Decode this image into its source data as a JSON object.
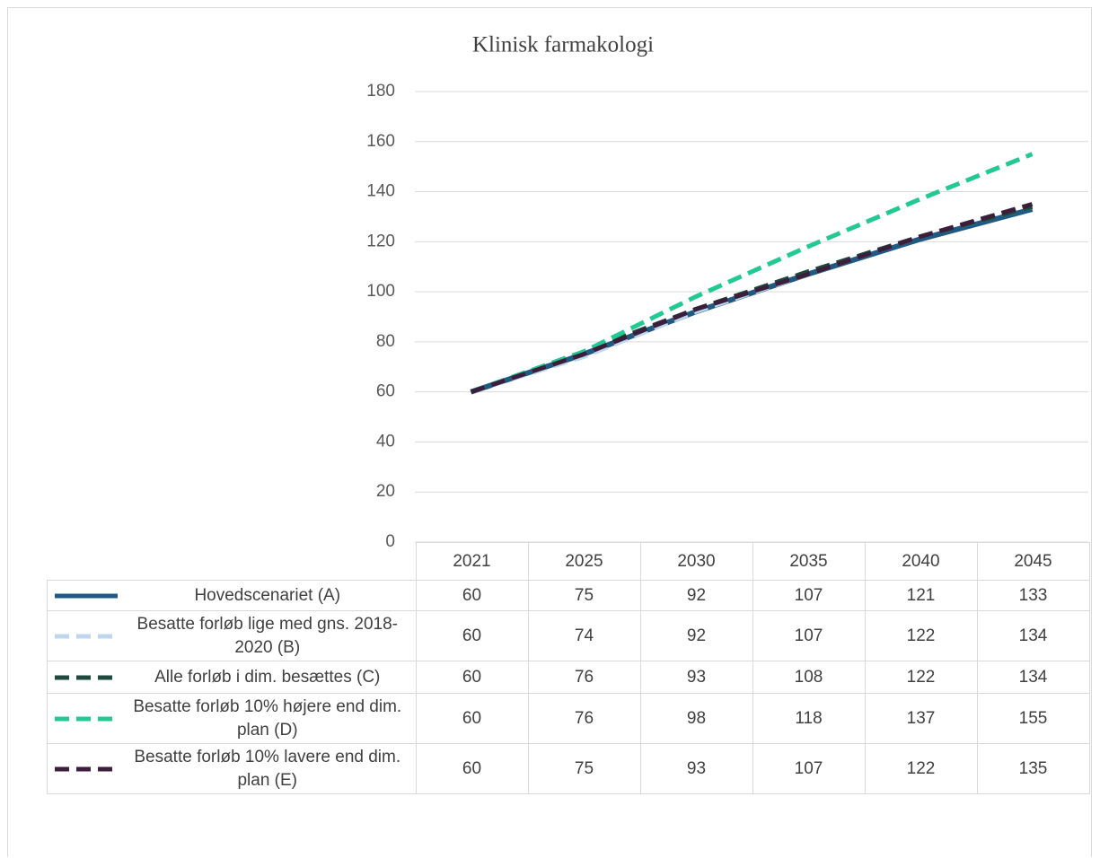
{
  "chart_data": {
    "type": "line",
    "title": "Klinisk farmakologi",
    "categories": [
      "2021",
      "2025",
      "2030",
      "2035",
      "2040",
      "2045"
    ],
    "ylim": [
      0,
      180
    ],
    "yticks": [
      0,
      20,
      40,
      60,
      80,
      100,
      120,
      140,
      160,
      180
    ],
    "grid": true,
    "series": [
      {
        "name": "Hovedscenariet (A)",
        "color": "#1f5a84",
        "dash": false,
        "values": [
          60,
          75,
          92,
          107,
          121,
          133
        ]
      },
      {
        "name": "Besatte forløb lige med gns. 2018-2020 (B)",
        "color": "#bdd7ee",
        "dash": true,
        "values": [
          60,
          74,
          92,
          107,
          122,
          134
        ]
      },
      {
        "name": "Alle forløb i dim. besættes (C)",
        "color": "#1d4a3c",
        "dash": true,
        "values": [
          60,
          76,
          93,
          108,
          122,
          134
        ]
      },
      {
        "name": "Besatte forløb 10% højere end dim. plan (D)",
        "color": "#22c993",
        "dash": true,
        "values": [
          60,
          76,
          98,
          118,
          137,
          155
        ]
      },
      {
        "name": "Besatte forløb 10% lavere end dim. plan (E)",
        "color": "#3a1e3c",
        "dash": true,
        "values": [
          60,
          75,
          93,
          107,
          122,
          135
        ]
      }
    ]
  }
}
